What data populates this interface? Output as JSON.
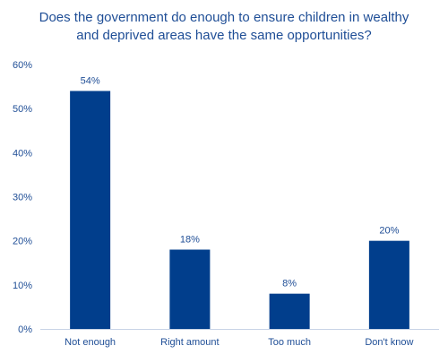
{
  "chart_data": {
    "type": "bar",
    "title_lines": [
      "Does the government do enough to ensure children in wealthy",
      "and deprived areas have the same opportunities?"
    ],
    "categories": [
      "Not enough",
      "Right amount",
      "Too much",
      "Don't know"
    ],
    "values": [
      54,
      18,
      8,
      20
    ],
    "data_labels": [
      "54%",
      "18%",
      "8%",
      "20%"
    ],
    "yticks": [
      "0%",
      "10%",
      "20%",
      "30%",
      "40%",
      "50%",
      "60%"
    ],
    "ylim": [
      0,
      60
    ],
    "xlabel": "",
    "ylabel": "",
    "grid": false,
    "colors": {
      "bar": "#013e8c",
      "text": "#1f4e96",
      "axis": "#c8d3e6"
    }
  }
}
